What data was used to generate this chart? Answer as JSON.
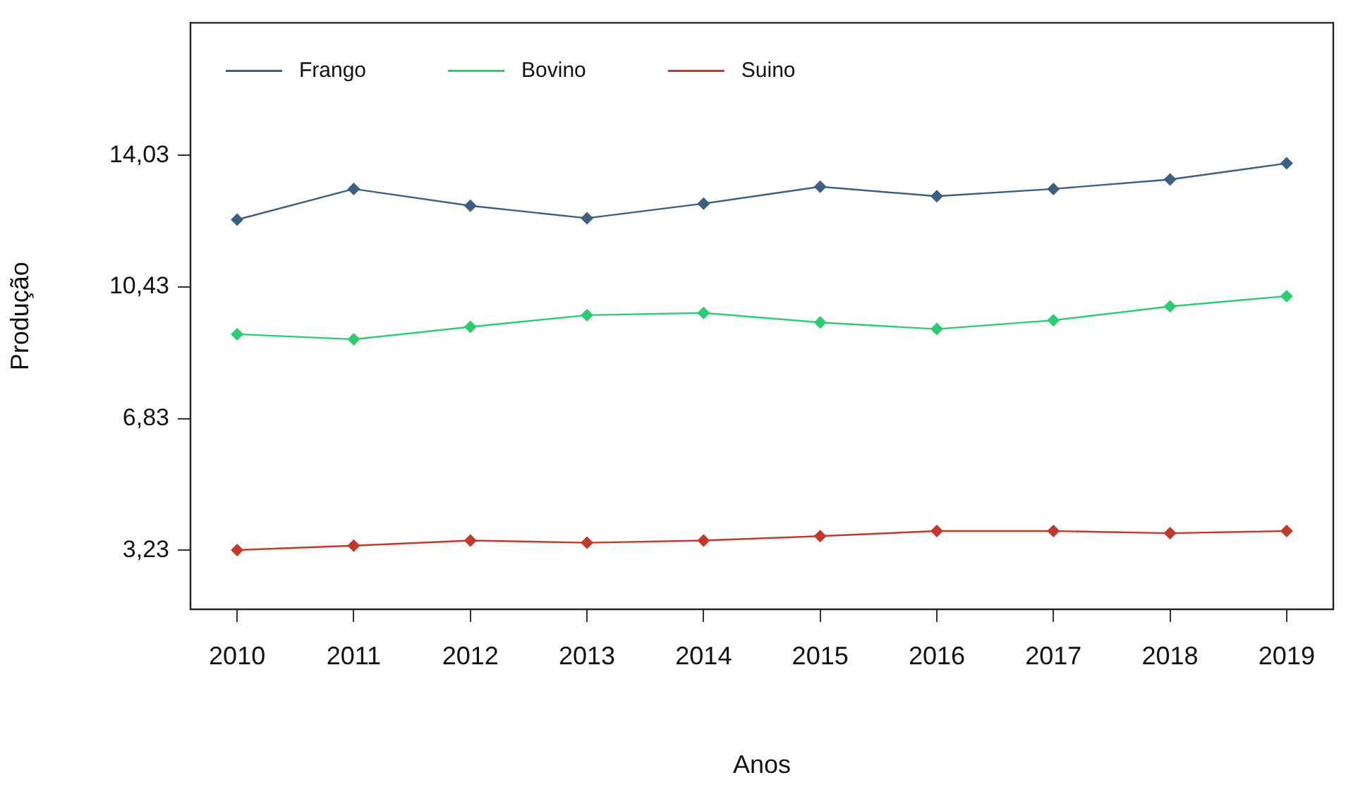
{
  "chart_data": {
    "type": "line",
    "xlabel": "Anos",
    "ylabel": "Produção",
    "x": [
      2010,
      2011,
      2012,
      2013,
      2014,
      2015,
      2016,
      2017,
      2018,
      2019
    ],
    "series": [
      {
        "name": "Frango",
        "color": "#3d5f80",
        "values": [
          12.27,
          13.11,
          12.65,
          12.31,
          12.71,
          13.17,
          12.91,
          13.11,
          13.37,
          13.81
        ]
      },
      {
        "name": "Bovino",
        "color": "#2ecc71",
        "values": [
          9.14,
          9.0,
          9.34,
          9.66,
          9.72,
          9.46,
          9.28,
          9.52,
          9.9,
          10.18
        ]
      },
      {
        "name": "Suino",
        "color": "#c0392b",
        "values": [
          3.24,
          3.36,
          3.5,
          3.44,
          3.5,
          3.62,
          3.76,
          3.76,
          3.7,
          3.76
        ]
      }
    ],
    "xlim": [
      2009.6,
      2019.4
    ],
    "xticks": [
      2010,
      2011,
      2012,
      2013,
      2014,
      2015,
      2016,
      2017,
      2018,
      2019
    ],
    "ylim": [
      1.62,
      17.65
    ],
    "yticks": [
      {
        "value": 3.23,
        "label": "3,23"
      },
      {
        "value": 6.83,
        "label": "6,83"
      },
      {
        "value": 10.43,
        "label": "10,43"
      },
      {
        "value": 14.03,
        "label": "14,03"
      }
    ],
    "grid": false,
    "legend": "top left",
    "marker": "diamond",
    "line_style": "solid"
  }
}
